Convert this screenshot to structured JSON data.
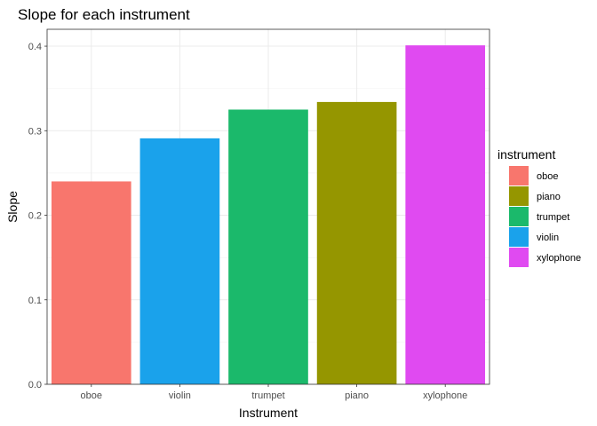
{
  "chart_data": {
    "type": "bar",
    "title": "Slope for each instrument",
    "xlabel": "Instrument",
    "ylabel": "Slope",
    "categories": [
      "oboe",
      "violin",
      "trumpet",
      "piano",
      "xylophone"
    ],
    "values": [
      0.24,
      0.291,
      0.325,
      0.334,
      0.401
    ],
    "bar_colors": [
      "#F8766D",
      "#1AA2EB",
      "#1BB96B",
      "#959600",
      "#E04AF1"
    ],
    "ylim": [
      0,
      0.42
    ],
    "yticks": [
      0.0,
      0.1,
      0.2,
      0.3,
      0.4
    ],
    "ytick_labels": [
      "0.0",
      "0.1",
      "0.2",
      "0.3",
      "0.4"
    ],
    "grid": true,
    "legend": {
      "title": "instrument",
      "position": "right",
      "entries": [
        {
          "label": "oboe",
          "color": "#F8766D"
        },
        {
          "label": "piano",
          "color": "#959600"
        },
        {
          "label": "trumpet",
          "color": "#1BB96B"
        },
        {
          "label": "violin",
          "color": "#1AA2EB"
        },
        {
          "label": "xylophone",
          "color": "#E04AF1"
        }
      ]
    }
  }
}
